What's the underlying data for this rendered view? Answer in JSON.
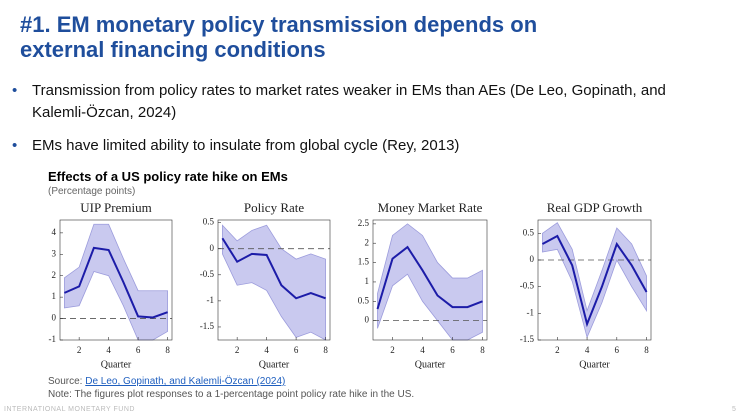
{
  "header": {
    "title_lines": [
      "#1. EM monetary policy transmission depends on",
      "external financing conditions"
    ]
  },
  "bullets": [
    "Transmission from policy rates to market rates weaker in EMs than AEs (De Leo, Gopinath, and Kalemli-Özcan, 2024)",
    "EMs have limited ability to insulate from global cycle (Rey, 2013)"
  ],
  "figure": {
    "title": "Effects of a US policy rate hike on EMs",
    "subtitle": "(Percentage points)"
  },
  "chart_data": [
    {
      "type": "line",
      "title": "UIP Premium",
      "xlabel": "Quarter",
      "x": [
        1,
        2,
        3,
        4,
        5,
        6,
        7,
        8
      ],
      "xlim": [
        0.7,
        8.3
      ],
      "xticks": [
        2,
        4,
        6,
        8
      ],
      "ylim": [
        -1,
        4.6
      ],
      "yticks": [
        -1,
        0,
        1,
        2,
        3,
        4
      ],
      "hline": 0,
      "color": "#1c1ca8",
      "band_color": "#c9c9ef",
      "values": [
        1.2,
        1.5,
        3.3,
        3.2,
        1.7,
        0.1,
        0.05,
        0.3
      ],
      "lower": [
        0.5,
        0.6,
        2.2,
        2.0,
        0.6,
        -1,
        -1,
        -0.6
      ],
      "upper": [
        1.9,
        2.4,
        4.4,
        4.4,
        2.8,
        1.3,
        1.3,
        1.3
      ]
    },
    {
      "type": "line",
      "title": "Policy Rate",
      "xlabel": "Quarter",
      "x": [
        1,
        2,
        3,
        4,
        5,
        6,
        7,
        8
      ],
      "xlim": [
        0.7,
        8.3
      ],
      "xticks": [
        2,
        4,
        6,
        8
      ],
      "ylim": [
        -1.75,
        0.55
      ],
      "yticks": [
        0.5,
        0,
        -0.5,
        -1,
        -1.5
      ],
      "hline": 0,
      "color": "#1c1ca8",
      "band_color": "#c9c9ef",
      "values": [
        0.2,
        -0.25,
        -0.1,
        -0.12,
        -0.7,
        -0.95,
        -0.85,
        -0.95
      ],
      "lower": [
        -0.1,
        -0.7,
        -0.65,
        -0.8,
        -1.3,
        -1.7,
        -1.6,
        -1.75
      ],
      "upper": [
        0.45,
        0.15,
        0.35,
        0.45,
        0.0,
        -0.2,
        -0.1,
        -0.2
      ]
    },
    {
      "type": "line",
      "title": "Money Market Rate",
      "xlabel": "Quarter",
      "x": [
        1,
        2,
        3,
        4,
        5,
        6,
        7,
        8
      ],
      "xlim": [
        0.7,
        8.3
      ],
      "xticks": [
        2,
        4,
        6,
        8
      ],
      "ylim": [
        -0.5,
        2.6
      ],
      "yticks": [
        0,
        0.5,
        1,
        1.5,
        2,
        2.5
      ],
      "hline": 0,
      "color": "#1c1ca8",
      "band_color": "#c9c9ef",
      "values": [
        0.3,
        1.6,
        1.9,
        1.3,
        0.65,
        0.35,
        0.35,
        0.5
      ],
      "lower": [
        -0.2,
        0.9,
        1.2,
        0.5,
        0,
        -0.5,
        -0.5,
        -0.3
      ],
      "upper": [
        0.7,
        2.2,
        2.5,
        2.2,
        1.5,
        1.1,
        1.1,
        1.3
      ]
    },
    {
      "type": "line",
      "title": "Real GDP Growth",
      "xlabel": "Quarter",
      "x": [
        1,
        2,
        3,
        4,
        5,
        6,
        7,
        8
      ],
      "xlim": [
        0.7,
        8.3
      ],
      "xticks": [
        2,
        4,
        6,
        8
      ],
      "ylim": [
        -1.5,
        0.75
      ],
      "yticks": [
        0.5,
        0,
        -0.5,
        -1,
        -1.5
      ],
      "hline": 0,
      "color": "#1c1ca8",
      "band_color": "#c9c9ef",
      "values": [
        0.3,
        0.45,
        -0.1,
        -1.2,
        -0.5,
        0.3,
        -0.1,
        -0.6
      ],
      "lower": [
        0.15,
        0.2,
        -0.4,
        -1.45,
        -0.8,
        0,
        -0.5,
        -0.95
      ],
      "upper": [
        0.5,
        0.7,
        0.2,
        -0.95,
        -0.2,
        0.6,
        0.3,
        -0.3
      ]
    }
  ],
  "footer": {
    "source_label": "Source:",
    "source_link": "De Leo, Gopinath, and Kalemli-Özcan (2024)",
    "note": "Note: The figures plot responses to a 1-percentage point policy rate hike in the US.",
    "org": "INTERNATIONAL MONETARY FUND",
    "page": "5"
  }
}
